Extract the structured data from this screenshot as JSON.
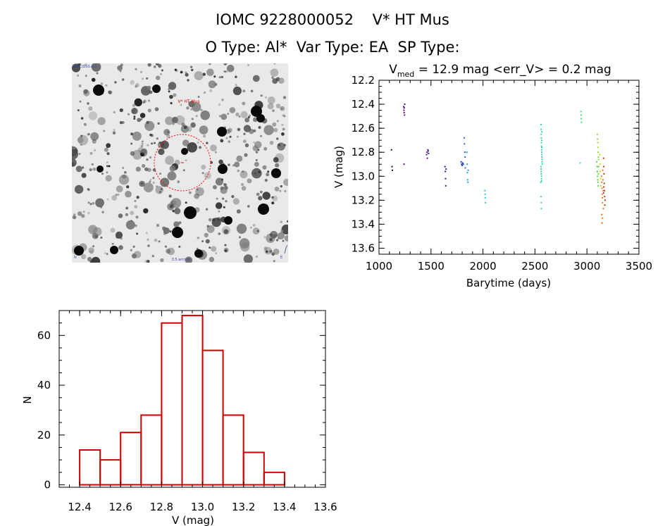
{
  "header": {
    "title_line1": "IOMC 9228000052    V* HT Mus",
    "title_line2": "O Type: Al*  Var Type: EA  SP Type:"
  },
  "sky_image": {
    "label_top_left": "OMC/DSS.red",
    "label_bottom_center": "3.5 arcmin",
    "label_bottom_left": "N",
    "label_bottom_right": "E",
    "target_label": "V* HT Mus"
  },
  "chart_data": [
    {
      "type": "scatter",
      "title_sub": "med",
      "title_prefix": "V",
      "title_rest": " = 12.9 mag <err_V> = 0.2 mag",
      "xlabel": "Barytime (days)",
      "ylabel": "V (mag)",
      "xlim": [
        1000,
        3500
      ],
      "ylim": [
        13.65,
        12.2
      ],
      "y_inverted": true,
      "xticks": [
        "1000",
        "1500",
        "2000",
        "2500",
        "3000",
        "3500"
      ],
      "yticks": [
        "12.2",
        "12.4",
        "12.6",
        "12.8",
        "13.0",
        "13.2",
        "13.4",
        "13.6"
      ],
      "series": [
        {
          "color": "#1a0033",
          "points": [
            [
              1120,
              12.78
            ],
            [
              1125,
              12.92
            ],
            [
              1128,
              12.95
            ]
          ]
        },
        {
          "color": "#5b0b82",
          "points": [
            [
              1238,
              12.42
            ],
            [
              1240,
              12.45
            ],
            [
              1242,
              12.47
            ],
            [
              1243,
              12.43
            ],
            [
              1245,
              12.49
            ],
            [
              1247,
              12.4
            ],
            [
              1240,
              12.9
            ]
          ]
        },
        {
          "color": "#5b1a8a",
          "points": [
            [
              1458,
              12.82
            ],
            [
              1462,
              12.8
            ],
            [
              1465,
              12.85
            ],
            [
              1470,
              12.78
            ],
            [
              1473,
              12.79
            ],
            [
              1476,
              12.81
            ]
          ]
        },
        {
          "color": "#2a1a9c",
          "points": [
            [
              1635,
              12.92
            ],
            [
              1638,
              12.96
            ],
            [
              1640,
              13.02
            ],
            [
              1642,
              13.08
            ],
            [
              1645,
              12.94
            ]
          ]
        },
        {
          "color": "#1f3fae",
          "points": [
            [
              1790,
              12.88
            ],
            [
              1795,
              12.9
            ],
            [
              1800,
              12.91
            ],
            [
              1805,
              12.89
            ],
            [
              1810,
              12.9
            ]
          ]
        },
        {
          "color": "#2a69c4",
          "points": [
            [
              1820,
              12.68
            ],
            [
              1822,
              12.73
            ],
            [
              1825,
              12.8
            ],
            [
              1828,
              12.84
            ],
            [
              1830,
              12.93
            ]
          ]
        },
        {
          "color": "#22a3cf",
          "points": [
            [
              1845,
              12.8
            ],
            [
              1848,
              12.9
            ],
            [
              1850,
              12.97
            ],
            [
              1852,
              13.03
            ],
            [
              1855,
              13.05
            ],
            [
              1858,
              12.95
            ]
          ]
        },
        {
          "color": "#2fc8c8",
          "points": [
            [
              2018,
              13.12
            ],
            [
              2020,
              13.15
            ],
            [
              2022,
              13.18
            ],
            [
              2024,
              13.22
            ]
          ]
        },
        {
          "color": "#33d6b0",
          "points": [
            [
              2558,
              12.57
            ],
            [
              2559,
              12.61
            ],
            [
              2560,
              12.65
            ],
            [
              2561,
              12.68
            ],
            [
              2562,
              12.72
            ],
            [
              2563,
              12.75
            ],
            [
              2564,
              12.78
            ],
            [
              2565,
              12.8
            ],
            [
              2566,
              12.82
            ],
            [
              2567,
              12.84
            ],
            [
              2568,
              12.86
            ],
            [
              2569,
              12.88
            ],
            [
              2570,
              12.9
            ],
            [
              2558,
              12.92
            ],
            [
              2559,
              12.94
            ],
            [
              2560,
              12.96
            ],
            [
              2561,
              12.98
            ],
            [
              2562,
              13.0
            ],
            [
              2563,
              13.02
            ],
            [
              2564,
              13.04
            ],
            [
              2565,
              12.76
            ],
            [
              2566,
              12.7
            ],
            [
              2567,
              12.63
            ],
            [
              2557,
              13.05
            ],
            [
              2558,
              13.17
            ],
            [
              2560,
              13.22
            ],
            [
              2561,
              13.27
            ]
          ]
        },
        {
          "color": "#3ae080",
          "points": [
            [
              2942,
              12.46
            ],
            [
              2944,
              12.49
            ],
            [
              2946,
              12.52
            ],
            [
              2948,
              12.55
            ],
            [
              2935,
              12.89
            ]
          ]
        },
        {
          "color": "#55d640",
          "points": [
            [
              3095,
              12.88
            ],
            [
              3098,
              12.92
            ],
            [
              3100,
              12.96
            ],
            [
              3102,
              13.0
            ],
            [
              3104,
              13.03
            ],
            [
              3106,
              13.05
            ],
            [
              3108,
              13.08
            ],
            [
              3110,
              12.98
            ],
            [
              3112,
              12.92
            ]
          ]
        },
        {
          "color": "#8edc2a",
          "points": [
            [
              3100,
              12.65
            ],
            [
              3102,
              12.69
            ],
            [
              3104,
              12.72
            ],
            [
              3106,
              12.76
            ],
            [
              3108,
              12.8
            ],
            [
              3110,
              12.84
            ],
            [
              3112,
              12.86
            ]
          ]
        },
        {
          "color": "#d4d41a",
          "points": [
            [
              3125,
              12.82
            ],
            [
              3127,
              12.9
            ],
            [
              3129,
              12.96
            ],
            [
              3131,
              13.02
            ],
            [
              3133,
              13.08
            ]
          ]
        },
        {
          "color": "#e07a1a",
          "points": [
            [
              3140,
              13.0
            ],
            [
              3142,
              13.05
            ],
            [
              3144,
              13.1
            ],
            [
              3146,
              13.15
            ],
            [
              3148,
              13.18
            ],
            [
              3150,
              13.22
            ],
            [
              3152,
              12.95
            ],
            [
              3154,
              13.03
            ],
            [
              3156,
              13.12
            ],
            [
              3158,
              13.27
            ],
            [
              3143,
              13.32
            ],
            [
              3145,
              13.39
            ],
            [
              3150,
              13.35
            ]
          ]
        },
        {
          "color": "#c8320a",
          "points": [
            [
              3160,
              12.85
            ],
            [
              3162,
              12.92
            ],
            [
              3164,
              12.98
            ],
            [
              3166,
              13.06
            ],
            [
              3168,
              13.12
            ],
            [
              3170,
              13.17
            ],
            [
              3172,
              13.24
            ],
            [
              3174,
              13.2
            ],
            [
              3160,
              13.14
            ],
            [
              3162,
              13.09
            ]
          ]
        }
      ]
    },
    {
      "type": "bar",
      "xlabel": "V (mag)",
      "ylabel": "N",
      "xlim": [
        12.3,
        13.6
      ],
      "ylim": [
        -1,
        70
      ],
      "xticks": [
        "12.4",
        "12.6",
        "12.8",
        "13.0",
        "13.2",
        "13.4",
        "13.6"
      ],
      "yticks": [
        "0",
        "20",
        "40",
        "60"
      ],
      "bin_edges": [
        12.4,
        12.5,
        12.6,
        12.7,
        12.8,
        12.9,
        13.0,
        13.1,
        13.2,
        13.3,
        13.4
      ],
      "values": [
        14,
        10,
        21,
        28,
        65,
        68,
        54,
        28,
        13,
        5
      ],
      "bar_color": "#cc0000"
    }
  ]
}
